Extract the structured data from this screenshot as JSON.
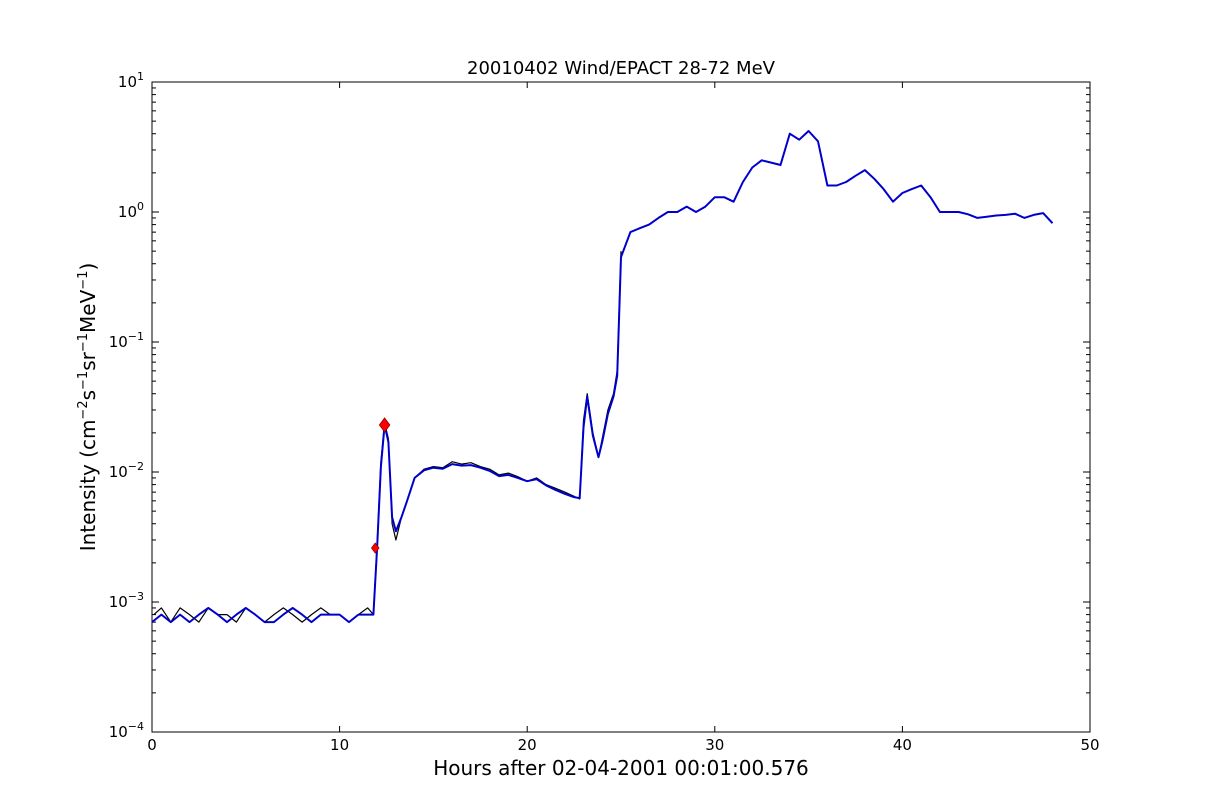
{
  "chart_data": {
    "type": "line",
    "title": "20010402 Wind/EPACT 28-72 MeV",
    "xlabel": "Hours after 02-04-2001 00:01:00.576",
    "ylabel_parts": {
      "prefix": "Intensity (cm",
      "exp1": "−2",
      "s": "s",
      "exp2": "−1",
      "sr": "sr",
      "exp3": "−1",
      "mev": "MeV",
      "exp4": "−1",
      "suffix": ")"
    },
    "xlim": [
      0,
      50
    ],
    "ylim": [
      0.0001,
      10
    ],
    "yscale": "log",
    "xticks": [
      0,
      10,
      20,
      30,
      40,
      50
    ],
    "xtick_labels": [
      "0",
      "10",
      "20",
      "30",
      "40",
      "50"
    ],
    "yticks": [
      0.0001,
      0.001,
      0.01,
      0.1,
      1,
      10
    ],
    "ytick_labels": [
      {
        "base": "10",
        "exp": "−4"
      },
      {
        "base": "10",
        "exp": "−3"
      },
      {
        "base": "10",
        "exp": "−2"
      },
      {
        "base": "10",
        "exp": "−1"
      },
      {
        "base": "10",
        "exp": "0"
      },
      {
        "base": "10",
        "exp": "1"
      }
    ],
    "grid": false,
    "series": [
      {
        "role": "raw",
        "color": "#000000",
        "x": [
          0.1,
          0.5,
          1.0,
          1.5,
          2.0,
          2.5,
          3.0,
          3.5,
          4.0,
          4.5,
          5.0,
          5.5,
          6.0,
          6.5,
          7.0,
          7.5,
          8.0,
          8.5,
          9.0,
          9.5,
          10.0,
          10.5,
          11.0,
          11.5,
          11.8,
          12.0,
          12.2,
          12.4,
          12.6,
          12.8,
          13.0,
          13.3,
          13.6,
          14.0,
          14.5,
          15.0,
          15.5,
          16.0,
          16.5,
          17.0,
          17.5,
          18.0,
          18.5,
          19.0,
          19.5,
          20.0,
          20.5,
          21.0,
          21.5,
          22.0,
          22.5,
          22.8,
          23.0,
          23.2,
          23.5,
          23.8,
          24.0,
          24.3,
          24.6,
          24.8,
          25.0
        ],
        "y": [
          0.0008,
          0.0009,
          0.0007,
          0.0009,
          0.0008,
          0.0007,
          0.0009,
          0.0008,
          0.0008,
          0.0007,
          0.0009,
          0.0008,
          0.0007,
          0.0008,
          0.0009,
          0.0008,
          0.0007,
          0.0008,
          0.0009,
          0.0008,
          0.0008,
          0.0007,
          0.0008,
          0.0009,
          0.0008,
          0.0028,
          0.012,
          0.024,
          0.018,
          0.004,
          0.003,
          0.0045,
          0.006,
          0.009,
          0.0105,
          0.011,
          0.0108,
          0.012,
          0.0115,
          0.0118,
          0.011,
          0.0105,
          0.0095,
          0.0098,
          0.0092,
          0.0085,
          0.009,
          0.008,
          0.0075,
          0.007,
          0.0065,
          0.0062,
          0.025,
          0.04,
          0.02,
          0.013,
          0.018,
          0.03,
          0.04,
          0.06,
          0.5
        ]
      },
      {
        "role": "smoothed",
        "color": "#0000cc",
        "x": [
          0.0,
          0.5,
          1.0,
          1.5,
          2.0,
          2.5,
          3.0,
          3.5,
          4.0,
          4.5,
          5.0,
          5.5,
          6.0,
          6.5,
          7.0,
          7.5,
          8.0,
          8.5,
          9.0,
          9.5,
          10.0,
          10.5,
          11.0,
          11.5,
          11.8,
          12.0,
          12.2,
          12.4,
          12.6,
          12.8,
          13.0,
          13.3,
          13.6,
          14.0,
          14.5,
          15.0,
          15.5,
          16.0,
          16.5,
          17.0,
          17.5,
          18.0,
          18.5,
          19.0,
          19.5,
          20.0,
          20.5,
          21.0,
          21.5,
          22.0,
          22.5,
          22.8,
          23.0,
          23.2,
          23.5,
          23.8,
          24.0,
          24.3,
          24.6,
          24.8,
          25.0,
          25.5,
          26.0,
          26.5,
          27.0,
          27.5,
          28.0,
          28.5,
          29.0,
          29.5,
          30.0,
          30.5,
          31.0,
          31.5,
          32.0,
          32.5,
          33.0,
          33.5,
          34.0,
          34.5,
          35.0,
          35.5,
          36.0,
          36.5,
          37.0,
          37.5,
          38.0,
          38.5,
          39.0,
          39.5,
          40.0,
          40.5,
          41.0,
          41.5,
          42.0,
          42.5,
          43.0,
          43.5,
          44.0,
          44.5,
          45.0,
          45.5,
          46.0,
          46.5,
          47.0,
          47.5,
          48.0
        ],
        "y": [
          0.0007,
          0.0008,
          0.0007,
          0.0008,
          0.0007,
          0.0008,
          0.0009,
          0.0008,
          0.0007,
          0.0008,
          0.0009,
          0.0008,
          0.0007,
          0.0007,
          0.0008,
          0.0009,
          0.0008,
          0.0007,
          0.0008,
          0.0008,
          0.0008,
          0.0007,
          0.0008,
          0.0008,
          0.0008,
          0.0026,
          0.011,
          0.023,
          0.017,
          0.0045,
          0.0035,
          0.0045,
          0.006,
          0.009,
          0.0103,
          0.0108,
          0.0106,
          0.0115,
          0.0112,
          0.0113,
          0.0108,
          0.0102,
          0.0093,
          0.0095,
          0.009,
          0.0085,
          0.0088,
          0.0079,
          0.0073,
          0.0068,
          0.0064,
          0.0063,
          0.022,
          0.038,
          0.019,
          0.013,
          0.017,
          0.028,
          0.038,
          0.055,
          0.45,
          0.7,
          0.75,
          0.8,
          0.9,
          1.0,
          1.0,
          1.1,
          1.0,
          1.1,
          1.3,
          1.3,
          1.2,
          1.7,
          2.2,
          2.5,
          2.4,
          2.3,
          4.0,
          3.6,
          4.2,
          3.5,
          1.6,
          1.6,
          1.7,
          1.9,
          2.1,
          1.8,
          1.5,
          1.2,
          1.4,
          1.5,
          1.6,
          1.3,
          1.0,
          1.0,
          1.0,
          0.96,
          0.9,
          0.92,
          0.94,
          0.95,
          0.97,
          0.9,
          0.95,
          0.98,
          0.82
        ]
      }
    ],
    "markers": [
      {
        "shape": "diamond",
        "color": "#ff0000",
        "x": 11.9,
        "y": 0.0026,
        "size": "small"
      },
      {
        "shape": "diamond",
        "color": "#ff0000",
        "x": 12.4,
        "y": 0.023,
        "size": "large"
      }
    ]
  }
}
